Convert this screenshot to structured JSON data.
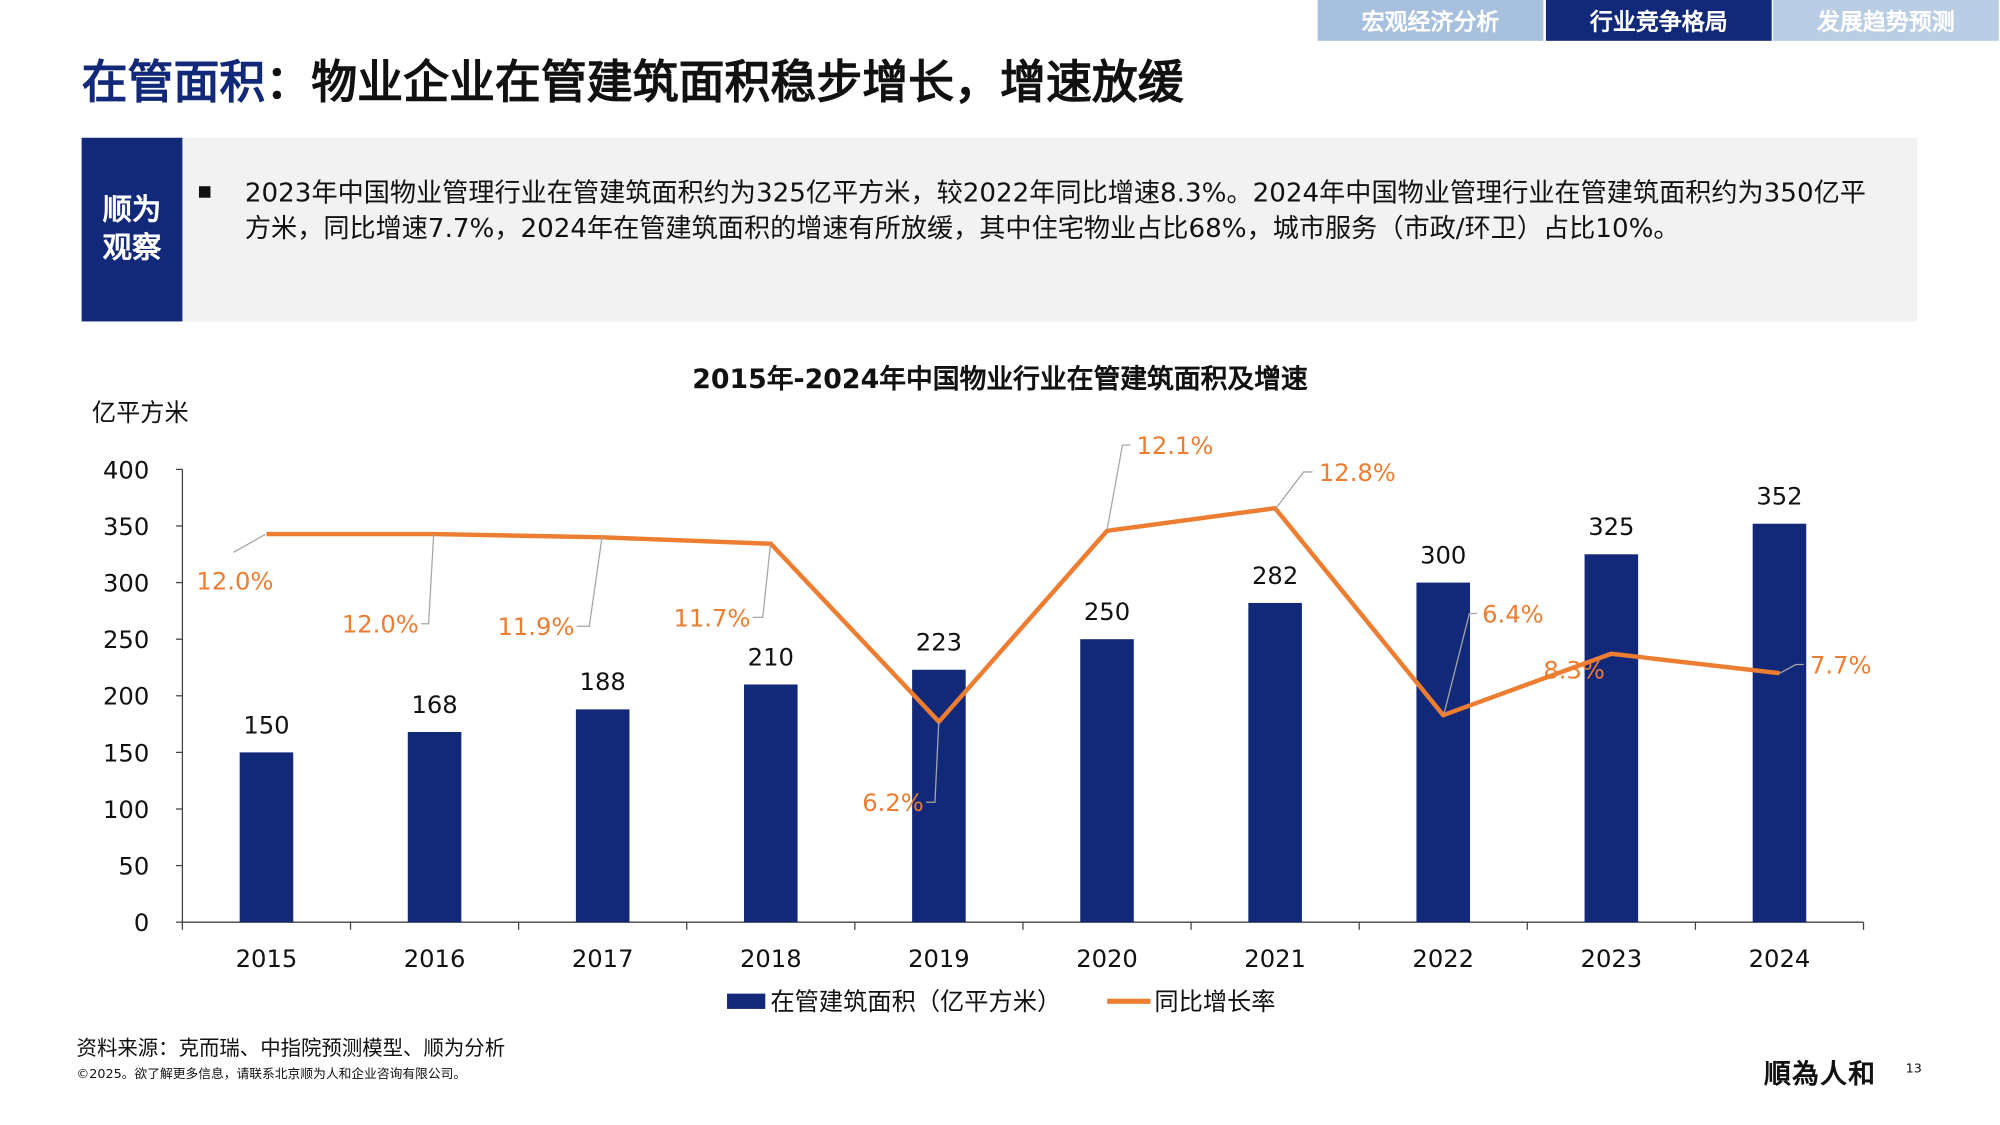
{
  "tabs": [
    {
      "label": "宏观经济分析",
      "active": false
    },
    {
      "label": "行业竞争格局",
      "active": true
    },
    {
      "label": "发展趋势预测",
      "active": false
    }
  ],
  "title": {
    "highlight": "在管面积",
    "rest": "：物业企业在管建筑面积稳步增长，增速放缓"
  },
  "observation": {
    "tag_line1": "顺为",
    "tag_line2": "观察",
    "text": "2023年中国物业管理行业在管建筑面积约为325亿平方米，较2022年同比增速8.3%。2024年中国物业管理行业在管建筑面积约为350亿平方米，同比增速7.7%，2024年在管建筑面积的增速有所放缓，其中住宅物业占比68%，城市服务（市政/环卫）占比10%。"
  },
  "chart_data": {
    "type": "bar+line",
    "title": "2015年-2024年中国物业行业在管建筑面积及增速",
    "ylabel": "亿平方米",
    "ylim": [
      0,
      400
    ],
    "yticks": [
      0,
      50,
      100,
      150,
      200,
      250,
      300,
      350,
      400
    ],
    "y2lim": [
      0,
      14
    ],
    "categories": [
      "2015",
      "2016",
      "2017",
      "2018",
      "2019",
      "2020",
      "2021",
      "2022",
      "2023",
      "2024"
    ],
    "series": [
      {
        "name": "在管建筑面积（亿平方米）",
        "type": "bar",
        "color": "#12297a",
        "values": [
          150,
          168,
          188,
          210,
          223,
          250,
          282,
          300,
          325,
          352
        ]
      },
      {
        "name": "同比增长率",
        "type": "line",
        "color": "#ed7d31",
        "values": [
          12.0,
          12.0,
          11.9,
          11.7,
          6.2,
          12.1,
          12.8,
          6.4,
          8.3,
          7.7
        ],
        "labels": [
          "12.0%",
          "12.0%",
          "11.9%",
          "11.7%",
          "6.2%",
          "12.1%",
          "12.8%",
          "6.4%",
          "8.3%",
          "7.7%"
        ]
      }
    ],
    "grid": false,
    "legend": "bottom"
  },
  "footer": {
    "source": "资料来源：克而瑞、中指院预测模型、顺为分析",
    "copyright": "©2025。欲了解更多信息，请联系北京顺为人和企业咨询有限公司。",
    "logo": "順為人和",
    "page": "13"
  }
}
